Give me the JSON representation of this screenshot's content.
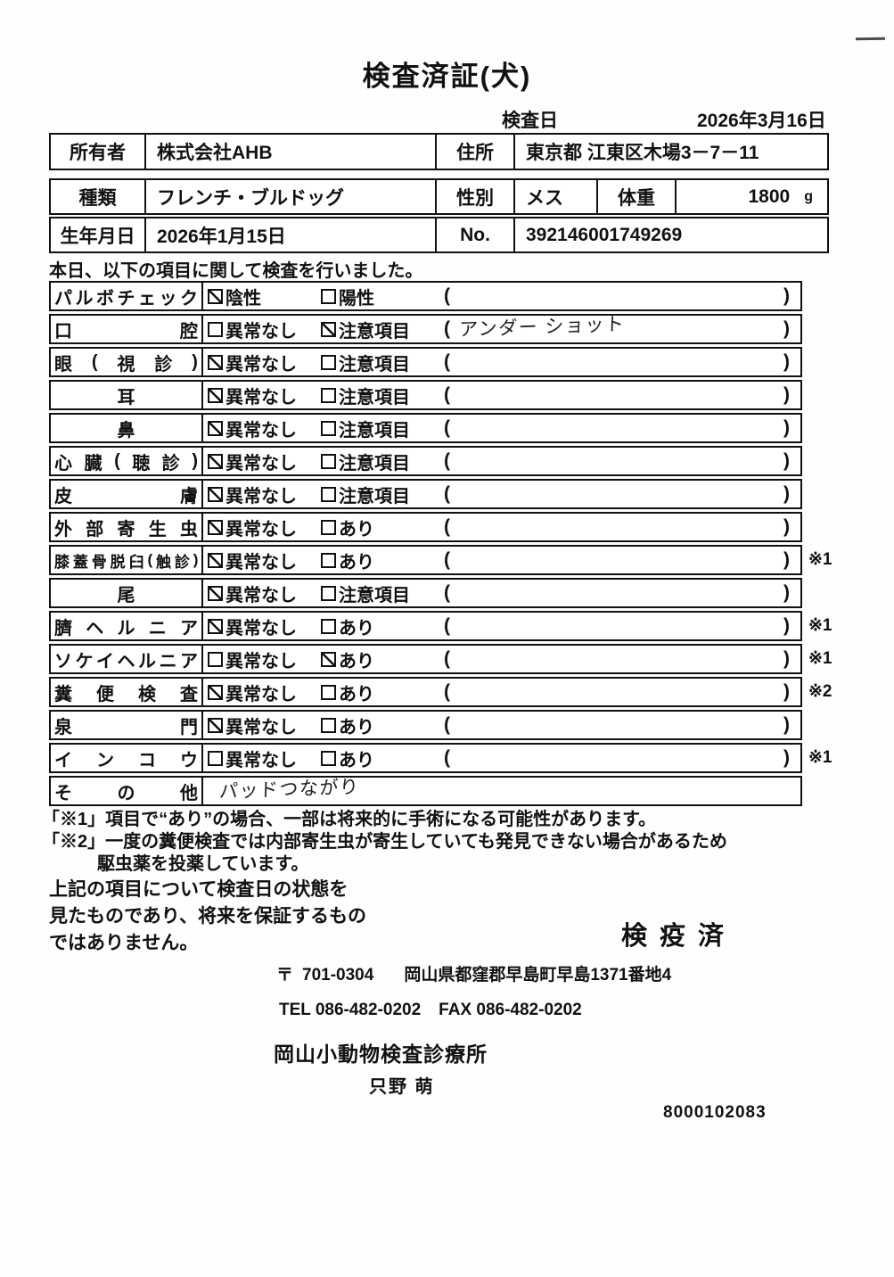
{
  "header": {
    "title": "検査済証(犬)",
    "exam_date_label": "検査日",
    "exam_date": "2026年3月16日"
  },
  "owner_table": {
    "owner_label": "所有者",
    "owner_value": "株式会社AHB",
    "address_label": "住所",
    "address_value": "東京都 江東区木場3－7－11"
  },
  "info_table": {
    "breed_label": "種類",
    "breed_value": "フレンチ・ブルドッグ",
    "sex_label": "性別",
    "sex_value": "メス",
    "weight_label": "体重",
    "weight_value": "1800",
    "weight_unit": "g",
    "dob_label": "生年月日",
    "dob_value": "2026年1月15日",
    "no_label": "No.",
    "no_value": "392146001749269"
  },
  "intro": "本日、以下の項目に関して検査を行いました。",
  "check_table": {
    "paren_open": "(",
    "paren_close": ")",
    "rows": [
      {
        "label": "パルボチェック",
        "opt1": "陰性",
        "c1": true,
        "opt2": "陽性",
        "c2": false,
        "paren": "",
        "note": ""
      },
      {
        "label": "口腔",
        "opt1": "異常なし",
        "c1": false,
        "opt2": "注意項目",
        "c2": true,
        "paren": "アンダー ショット",
        "note": ""
      },
      {
        "label": "眼(視診)",
        "opt1": "異常なし",
        "c1": true,
        "opt2": "注意項目",
        "c2": false,
        "paren": "",
        "note": ""
      },
      {
        "label": "耳",
        "single": true,
        "opt1": "異常なし",
        "c1": true,
        "opt2": "注意項目",
        "c2": false,
        "paren": "",
        "note": ""
      },
      {
        "label": "鼻",
        "single": true,
        "opt1": "異常なし",
        "c1": true,
        "opt2": "注意項目",
        "c2": false,
        "paren": "",
        "note": ""
      },
      {
        "label": "心臓(聴診)",
        "opt1": "異常なし",
        "c1": true,
        "opt2": "注意項目",
        "c2": false,
        "paren": "",
        "note": ""
      },
      {
        "label": "皮膚",
        "opt1": "異常なし",
        "c1": true,
        "opt2": "注意項目",
        "c2": false,
        "paren": "",
        "note": ""
      },
      {
        "label": "外部寄生虫",
        "opt1": "異常なし",
        "c1": true,
        "opt2": "あり",
        "c2": false,
        "paren": "",
        "note": ""
      },
      {
        "label": "膝蓋骨脱臼(触診)",
        "opt1": "異常なし",
        "c1": true,
        "opt2": "あり",
        "c2": false,
        "paren": "",
        "note": "※1"
      },
      {
        "label": "尾",
        "single": true,
        "opt1": "異常なし",
        "c1": true,
        "opt2": "注意項目",
        "c2": false,
        "paren": "",
        "note": ""
      },
      {
        "label": "臍ヘルニア",
        "opt1": "異常なし",
        "c1": true,
        "opt2": "あり",
        "c2": false,
        "paren": "",
        "note": "※1"
      },
      {
        "label": "ソケイヘルニア",
        "opt1": "異常なし",
        "c1": false,
        "opt2": "あり",
        "c2": true,
        "paren": "",
        "note": "※1"
      },
      {
        "label": "糞便検査",
        "opt1": "異常なし",
        "c1": true,
        "opt2": "あり",
        "c2": false,
        "paren": "",
        "note": "※2"
      },
      {
        "label": "泉門",
        "opt1": "異常なし",
        "c1": true,
        "opt2": "あり",
        "c2": false,
        "paren": "",
        "note": ""
      },
      {
        "label": "インコウ",
        "opt1": "異常なし",
        "c1": false,
        "opt2": "あり",
        "c2": false,
        "paren": "",
        "note": "※1"
      },
      {
        "label": "その他",
        "free_text": "パッドつながり",
        "note": ""
      }
    ]
  },
  "notes": [
    "「※1」項目で“あり”の場合、一部は将来的に手術になる可能性があります。",
    "「※2」一度の糞便検査では内部寄生虫が寄生していても発見できない場合があるため",
    "駆虫薬を投薬しています。"
  ],
  "disclaimer": [
    "上記の項目について検査日の状態を",
    "見たものであり、将来を保証するもの",
    "ではありません。"
  ],
  "footer": {
    "stamp": "検疫済",
    "postal_mark": "〒",
    "postal_code": "701-0304",
    "address": "岡山県都窪郡早島町早島1371番地4",
    "tel": "TEL 086-482-0202",
    "fax": "FAX 086-482-0202",
    "clinic": "岡山小動物検査診療所",
    "inspector": "只野 萌",
    "serial": "8000102083"
  }
}
